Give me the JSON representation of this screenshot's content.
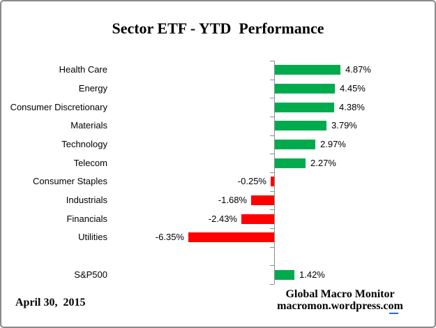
{
  "title": "Sector ETF - YTD  Performance",
  "date_label": "April 30,  2015",
  "credit": {
    "line1": "Global Macro Monitor",
    "line2": "macromon.wordpress.com"
  },
  "colors": {
    "positive": "#00AB4E",
    "negative": "#FF0000",
    "axis": "#8C8C8C",
    "frame_border": "#8A8A8A",
    "text": "#000000"
  },
  "chart_data": {
    "type": "bar",
    "orientation": "horizontal",
    "title": "Sector ETF - YTD  Performance",
    "unit": "percent",
    "categories": [
      "Health Care",
      "Energy",
      "Consumer Discretionary",
      "Materials",
      "Technology",
      "Telecom",
      "Consumer Staples",
      "Industrials",
      "Financials",
      "Utilities",
      "S&P500"
    ],
    "values": [
      4.87,
      4.45,
      4.38,
      3.79,
      2.97,
      2.27,
      -0.25,
      -1.68,
      -2.43,
      -6.35,
      1.42
    ],
    "value_labels": [
      "4.87%",
      "4.45%",
      "4.38%",
      "3.79%",
      "2.97%",
      "2.27%",
      "-0.25%",
      "-1.68%",
      "-2.43%",
      "-6.35%",
      "1.42%"
    ],
    "blank_row_before_last": true,
    "xlim": [
      -7,
      6.5
    ],
    "grid": false,
    "legend": false,
    "zero_axis_line": true
  }
}
